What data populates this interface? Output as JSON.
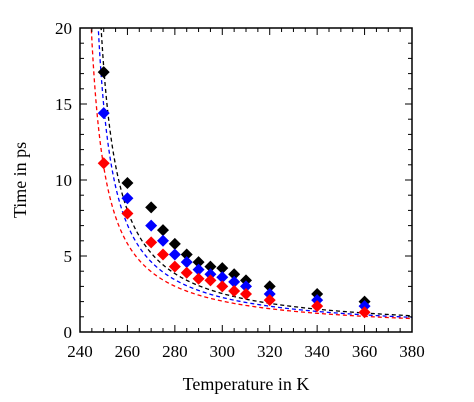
{
  "chart_data": {
    "type": "scatter",
    "title": "",
    "xlabel": "Temperature in K",
    "ylabel": "Time in ps",
    "xlim": [
      240,
      380
    ],
    "ylim": [
      0,
      20
    ],
    "xticks": [
      240,
      260,
      280,
      300,
      320,
      340,
      360,
      380
    ],
    "yticks": [
      0,
      5,
      10,
      15,
      20
    ],
    "grid": false,
    "legend": "none",
    "marker": "diamond",
    "series": [
      {
        "color": "#000000",
        "x": [
          250,
          260,
          270,
          275,
          280,
          285,
          290,
          295,
          300,
          305,
          310,
          320,
          340,
          360
        ],
        "y": [
          17.1,
          9.8,
          8.2,
          6.7,
          5.8,
          5.1,
          4.6,
          4.3,
          4.2,
          3.8,
          3.4,
          3.0,
          2.5,
          2.0
        ],
        "fit_curve": {
          "form": "a/(T-T0)",
          "a": 148,
          "T0": 241.5
        }
      },
      {
        "color": "#0000ff",
        "x": [
          250,
          260,
          270,
          275,
          280,
          285,
          290,
          295,
          300,
          305,
          310,
          320,
          340,
          360
        ],
        "y": [
          14.4,
          8.8,
          7.0,
          6.0,
          5.1,
          4.6,
          4.1,
          3.8,
          3.6,
          3.3,
          3.0,
          2.5,
          2.1,
          1.7
        ],
        "fit_curve": {
          "form": "a/(T-T0)",
          "a": 134,
          "T0": 241.0
        }
      },
      {
        "color": "#ff0000",
        "x": [
          250,
          260,
          270,
          275,
          280,
          285,
          290,
          295,
          300,
          305,
          310,
          320,
          340,
          360
        ],
        "y": [
          11.1,
          7.8,
          5.9,
          5.1,
          4.3,
          3.9,
          3.5,
          3.4,
          3.0,
          2.7,
          2.5,
          2.1,
          1.7,
          1.3
        ],
        "fit_curve": {
          "form": "a/(T-T0)",
          "a": 125,
          "T0": 238.5
        }
      }
    ]
  }
}
